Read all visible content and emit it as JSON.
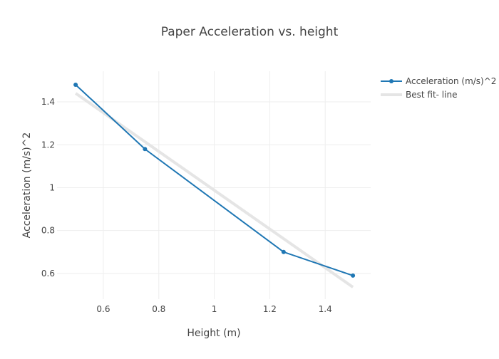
{
  "chart_data": {
    "type": "line",
    "title": "Paper Acceleration vs. height",
    "xlabel": "Height (m)",
    "ylabel": "Acceleration (m/s)^2",
    "xlim": [
      0.433,
      1.564
    ],
    "ylim": [
      0.48,
      1.543
    ],
    "xticks": [
      0.6,
      0.8,
      1,
      1.2,
      1.4
    ],
    "xtick_labels": [
      "0.6",
      "0.8",
      "1",
      "1.2",
      "1.4"
    ],
    "yticks": [
      0.6,
      0.8,
      1,
      1.2,
      1.4
    ],
    "ytick_labels": [
      "0.6",
      "0.8",
      "1",
      "1.2",
      "1.4"
    ],
    "grid": true,
    "legend_placement": "top-right",
    "series": [
      {
        "name": "Acceleration (m/s)^2",
        "mode": "lines+markers",
        "color": "#1f77b4",
        "x": [
          0.5,
          0.75,
          1.25,
          1.5
        ],
        "y": [
          1.48,
          1.18,
          0.7,
          0.59
        ]
      },
      {
        "name": "Best fit- line",
        "mode": "lines",
        "color": "#e5e5e5",
        "x": [
          0.5,
          1.5
        ],
        "y": [
          1.44,
          0.536
        ]
      }
    ]
  }
}
